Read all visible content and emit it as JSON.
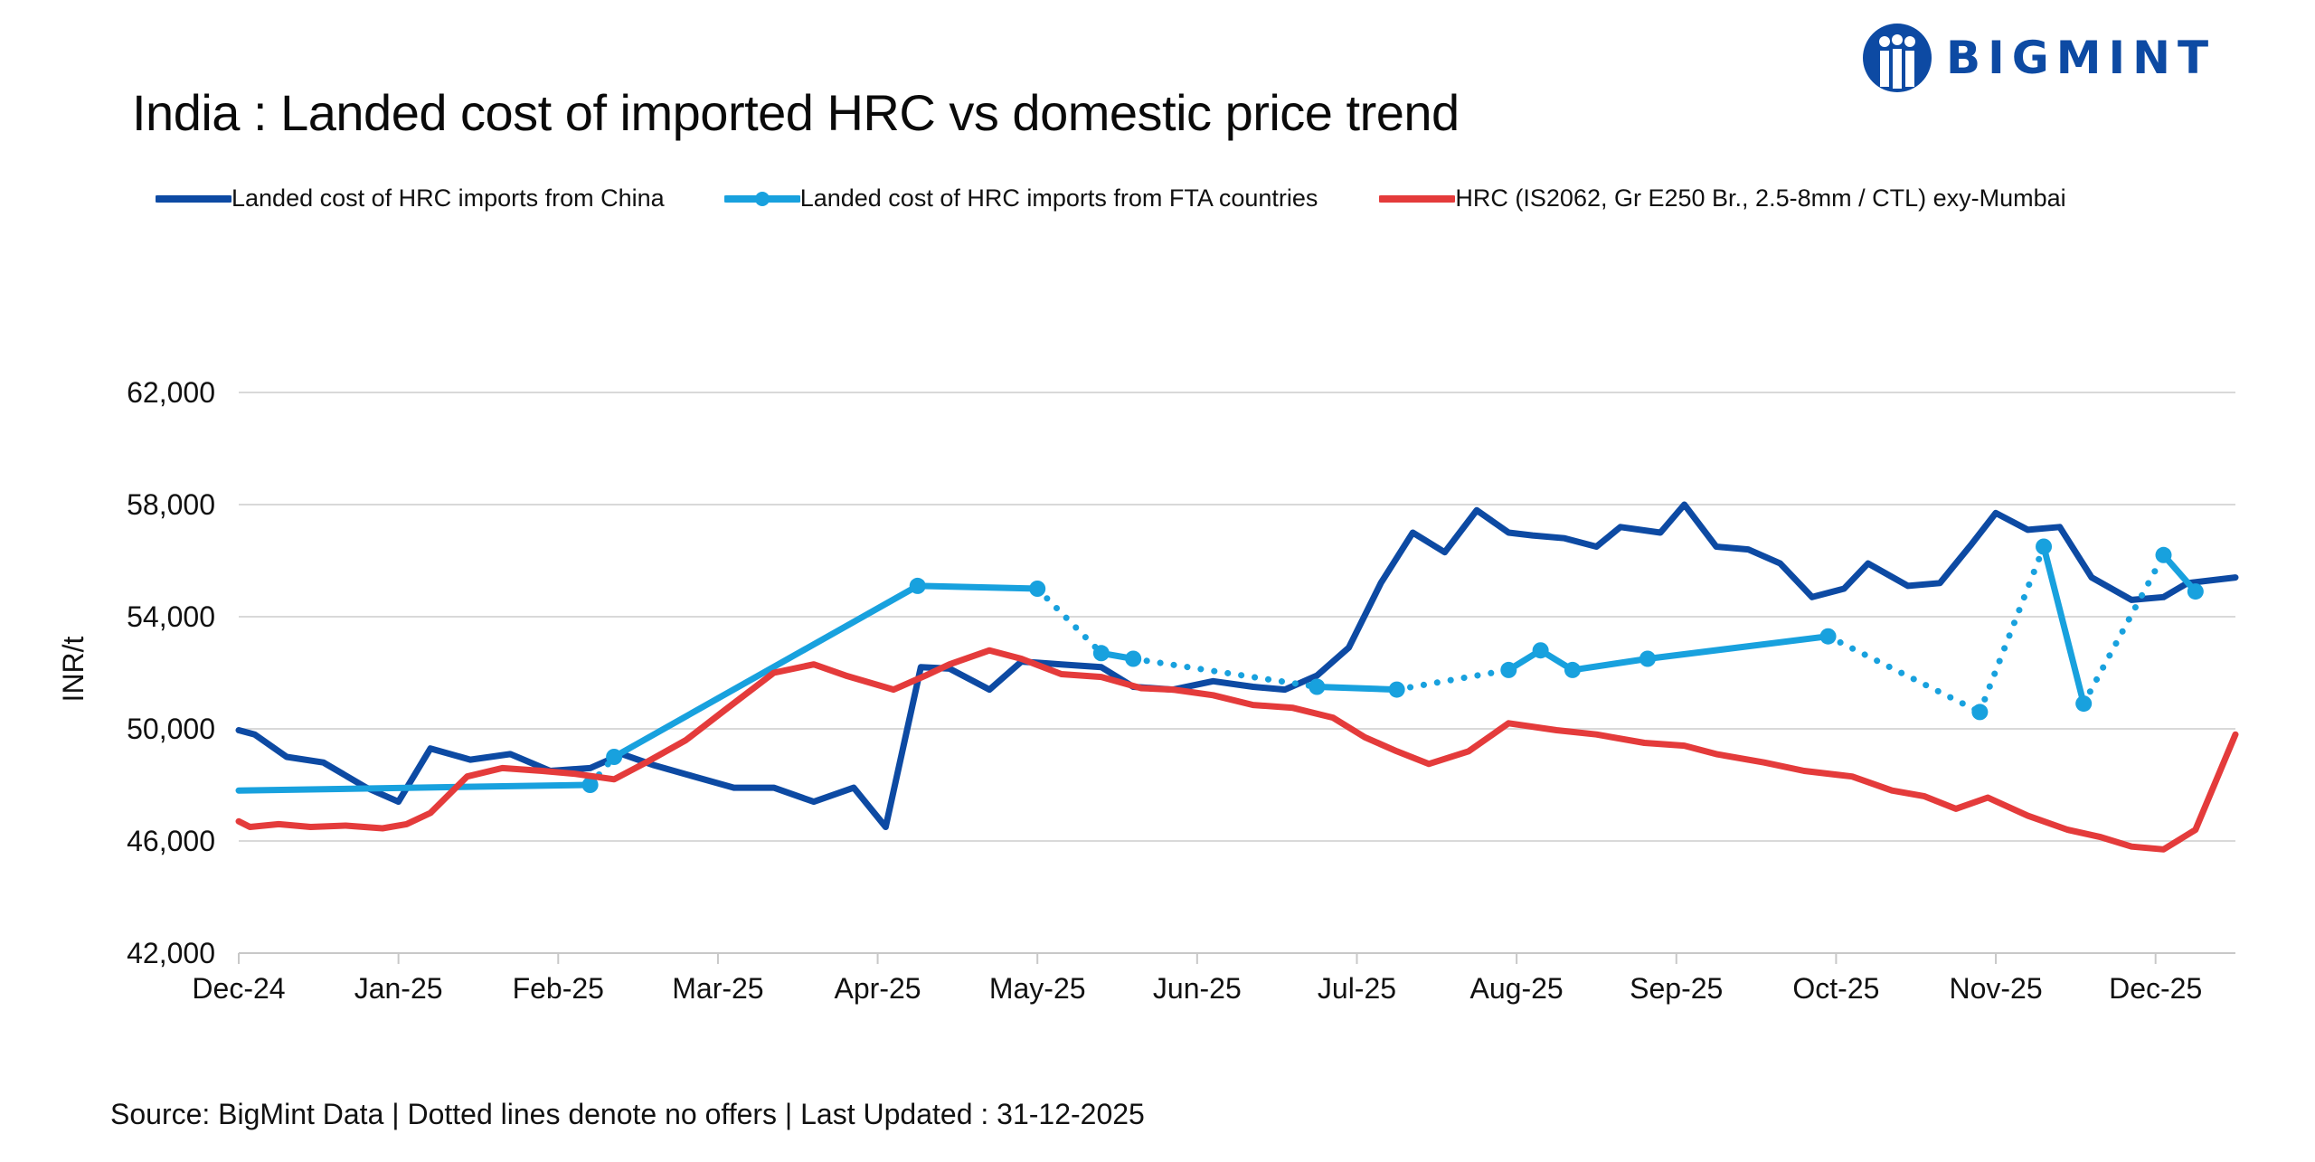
{
  "title": "India : Landed cost of imported HRC vs domestic price trend",
  "logo": {
    "text": "BIGMINT",
    "color": "#0d4aa3"
  },
  "footer": "Source: BigMint Data | Dotted lines denote no offers | Last Updated : 31-12-2025",
  "chart_data": {
    "type": "line",
    "ylabel": "INR/t",
    "xlabel": "",
    "ylim": [
      42000,
      62000
    ],
    "yticks": [
      42000,
      46000,
      50000,
      54000,
      58000,
      62000
    ],
    "ytick_labels": [
      "42,000",
      "46,000",
      "50,000",
      "54,000",
      "58,000",
      "62,000"
    ],
    "x_range_months": [
      0,
      12.5
    ],
    "xticks": [
      0,
      1,
      2,
      3,
      4,
      5,
      6,
      7,
      8,
      9,
      10,
      11,
      12
    ],
    "xtick_labels": [
      "Dec-24",
      "Jan-25",
      "Feb-25",
      "Mar-25",
      "Apr-25",
      "May-25",
      "Jun-25",
      "Jul-25",
      "Aug-25",
      "Sep-25",
      "Oct-25",
      "Nov-25",
      "Dec-25"
    ],
    "grid": true,
    "legend_position": "top",
    "series": [
      {
        "name": "Landed cost of HRC imports from China",
        "color": "#0d4aa3",
        "markers": false,
        "dotted_segments": [],
        "x": [
          0,
          0.1,
          0.3,
          0.53,
          0.8,
          1.0,
          1.2,
          1.45,
          1.7,
          1.95,
          2.2,
          2.4,
          2.6,
          2.85,
          3.1,
          3.35,
          3.6,
          3.85,
          4.05,
          4.27,
          4.45,
          4.7,
          4.9,
          5.15,
          5.4,
          5.6,
          5.85,
          6.1,
          6.35,
          6.55,
          6.75,
          6.95,
          7.15,
          7.35,
          7.55,
          7.75,
          7.95,
          8.1,
          8.3,
          8.5,
          8.65,
          8.9,
          9.05,
          9.25,
          9.45,
          9.65,
          9.85,
          10.05,
          10.2,
          10.45,
          10.65,
          10.85,
          11.0,
          11.2,
          11.4,
          11.6,
          11.85,
          12.05,
          12.2,
          12.5
        ],
        "values": [
          49950,
          49800,
          49000,
          48800,
          47900,
          47400,
          49300,
          48900,
          49100,
          48500,
          48600,
          49100,
          48700,
          48300,
          47900,
          47900,
          47400,
          47900,
          46500,
          52200,
          52150,
          51400,
          52400,
          52300,
          52200,
          51500,
          51400,
          51700,
          51500,
          51400,
          51900,
          52900,
          55200,
          57000,
          56300,
          57800,
          57000,
          56900,
          56800,
          56500,
          57200,
          57000,
          58000,
          56500,
          56400,
          55900,
          54700,
          55000,
          55900,
          55100,
          55200,
          56600,
          57700,
          57100,
          57200,
          55400,
          54600,
          54700,
          55200,
          55400
        ]
      },
      {
        "name": "Landed cost of HRC imports from FTA countries",
        "color": "#18a1de",
        "markers": true,
        "x": [
          0,
          2.2,
          2.35,
          4.25,
          5.0,
          5.4,
          5.6,
          6.75,
          7.25,
          7.95,
          8.15,
          8.35,
          8.82,
          9.95,
          10.9,
          11.3,
          11.55,
          12.05,
          12.25
        ],
        "values": [
          47800,
          48000,
          49000,
          55100,
          55000,
          52700,
          52500,
          51500,
          51400,
          52100,
          52800,
          52100,
          52500,
          53300,
          50600,
          56500,
          50900,
          56200,
          54900
        ],
        "show_marker": [
          false,
          true,
          true,
          true,
          true,
          true,
          true,
          true,
          true,
          true,
          true,
          true,
          true,
          true,
          true,
          true,
          true,
          true,
          true
        ],
        "dotted_segments": [
          1,
          4,
          6,
          8,
          13,
          14,
          16
        ]
      },
      {
        "name": "HRC (IS2062, Gr E250 Br., 2.5-8mm / CTL) exy-Mumbai",
        "color": "#e43b3b",
        "markers": false,
        "dotted_segments": [],
        "x": [
          0,
          0.07,
          0.25,
          0.45,
          0.67,
          0.9,
          1.05,
          1.2,
          1.43,
          1.65,
          1.9,
          2.1,
          2.35,
          2.55,
          2.8,
          3.05,
          3.35,
          3.6,
          3.8,
          4.1,
          4.3,
          4.45,
          4.7,
          4.9,
          5.15,
          5.4,
          5.65,
          5.85,
          6.1,
          6.35,
          6.6,
          6.85,
          7.05,
          7.25,
          7.45,
          7.7,
          7.95,
          8.25,
          8.5,
          8.8,
          9.05,
          9.25,
          9.55,
          9.8,
          10.1,
          10.35,
          10.55,
          10.75,
          10.95,
          11.2,
          11.45,
          11.65,
          11.85,
          12.05,
          12.25,
          12.5
        ],
        "values": [
          46700,
          46500,
          46600,
          46500,
          46550,
          46450,
          46600,
          47000,
          48300,
          48600,
          48500,
          48400,
          48200,
          48800,
          49600,
          50700,
          52000,
          52300,
          51900,
          51400,
          51900,
          52300,
          52800,
          52500,
          51950,
          51850,
          51450,
          51400,
          51200,
          50850,
          50750,
          50400,
          49700,
          49200,
          48750,
          49200,
          50200,
          49950,
          49800,
          49500,
          49400,
          49100,
          48800,
          48500,
          48300,
          47800,
          47600,
          47150,
          47550,
          46900,
          46400,
          46150,
          45800,
          45700,
          46400,
          49800
        ]
      }
    ]
  }
}
